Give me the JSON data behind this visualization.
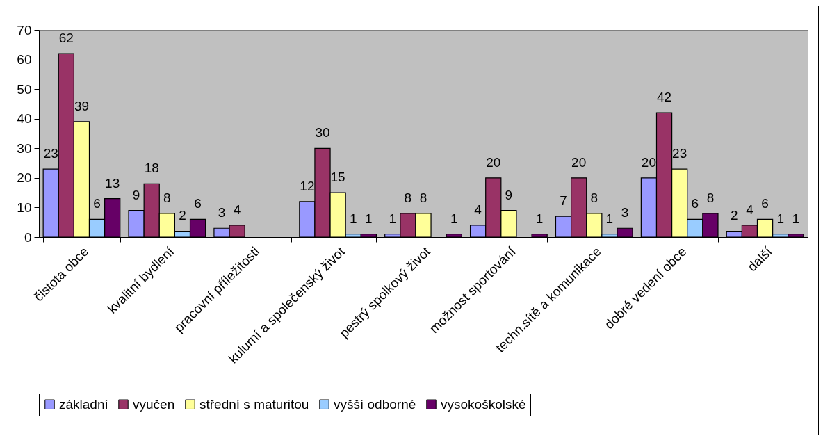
{
  "chart_data": {
    "type": "bar",
    "categories": [
      "čistota obce",
      "kvalitní bydlení",
      "pracovní příležitosti",
      "kulurní a společenský život",
      "pestrý spolkový život",
      "možnost sportování",
      "techn.sítě a komunikace",
      "dobré vedení obce",
      "další"
    ],
    "series": [
      {
        "name": "základní",
        "color": "#9999ff",
        "values": [
          23,
          9,
          3,
          12,
          1,
          4,
          7,
          20,
          2
        ]
      },
      {
        "name": "vyučen",
        "color": "#993366",
        "values": [
          62,
          18,
          4,
          30,
          8,
          20,
          20,
          42,
          4
        ]
      },
      {
        "name": "střední s maturitou",
        "color": "#ffff99",
        "values": [
          39,
          8,
          null,
          15,
          8,
          9,
          8,
          23,
          6
        ]
      },
      {
        "name": "vyšší odborné",
        "color": "#99ccff",
        "values": [
          6,
          2,
          null,
          1,
          null,
          null,
          1,
          6,
          1
        ]
      },
      {
        "name": "vysokoškolské",
        "color": "#660066",
        "values": [
          13,
          6,
          null,
          1,
          1,
          1,
          3,
          8,
          1
        ]
      }
    ],
    "ylim": [
      0,
      70
    ],
    "yticks": [
      0,
      10,
      20,
      30,
      40,
      50,
      60,
      70
    ],
    "grid": false,
    "legend": "bottom",
    "data_labels": true
  }
}
